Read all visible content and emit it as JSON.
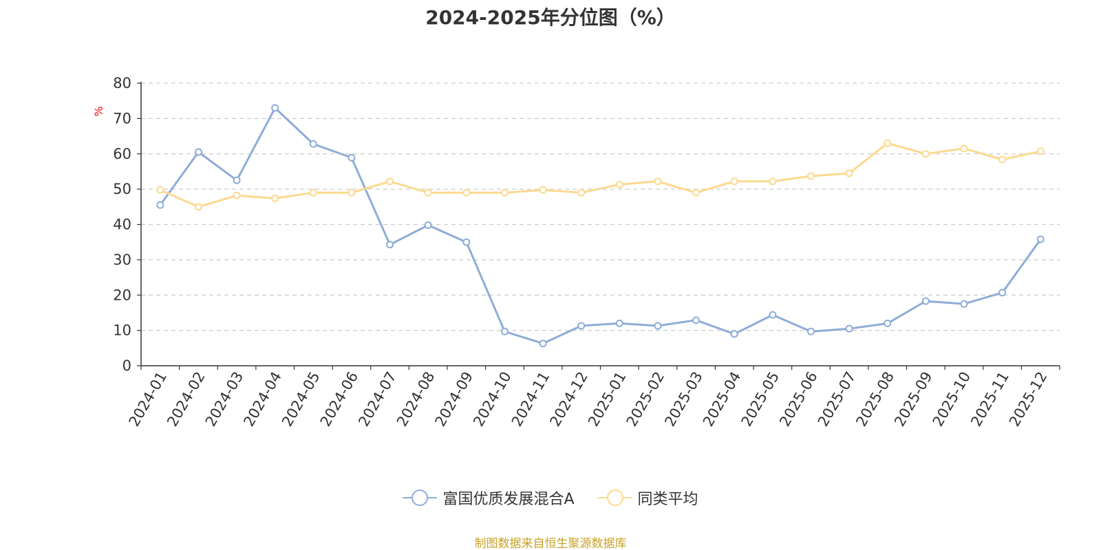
{
  "page": {
    "title": "2024-2025年分位图（%）",
    "source": "制图数据来自恒生聚源数据库",
    "source_color": "#c9a227"
  },
  "chart_data": {
    "type": "line",
    "title": "2024-2025年分位图（%）",
    "xlabel": "",
    "ylabel": "%",
    "ylabel_color": "#ff0000",
    "ylim": [
      0,
      80
    ],
    "yticks": [
      0,
      10,
      20,
      30,
      40,
      50,
      60,
      70,
      80
    ],
    "grid": true,
    "legend_position": "bottom",
    "categories": [
      "2024-01",
      "2024-02",
      "2024-03",
      "2024-04",
      "2024-05",
      "2024-06",
      "2024-07",
      "2024-08",
      "2024-09",
      "2024-10",
      "2024-11",
      "2024-12",
      "2025-01",
      "2025-02",
      "2025-03",
      "2025-04",
      "2025-05",
      "2025-06",
      "2025-07",
      "2025-08",
      "2025-09",
      "2025-10",
      "2025-11",
      "2025-12"
    ],
    "series": [
      {
        "name": "富国优质发展混合A",
        "color": "#8eacd8",
        "values": [
          45.5,
          60.5,
          52.5,
          73,
          62.8,
          58.9,
          34.3,
          39.8,
          35,
          9.7,
          6.3,
          11.3,
          12,
          11.3,
          12.9,
          9,
          14.4,
          9.7,
          10.5,
          12,
          18.3,
          17.5,
          20.7,
          35.8
        ]
      },
      {
        "name": "同类平均",
        "color": "#fbd98f",
        "values": [
          49.8,
          45,
          48.2,
          47.4,
          49,
          49,
          52.2,
          49,
          49,
          49,
          49.8,
          49,
          51.3,
          52.2,
          49,
          52.2,
          52.2,
          53.7,
          54.5,
          63,
          60,
          61.5,
          58.4,
          60.7
        ]
      }
    ]
  }
}
